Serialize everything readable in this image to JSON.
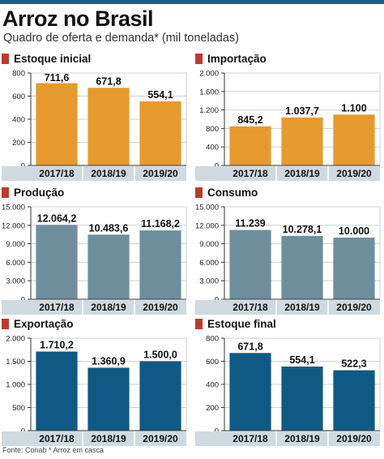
{
  "title": "Arroz no Brasil",
  "subtitle": "Quadro de oferta e demanda* (mil toneladas)",
  "source": "Fonte: Conab * Arroz em casca",
  "colors": {
    "orange": "#e69a2e",
    "gray": "#6f8e9b",
    "blue": "#0e5a84",
    "marker": "#c0392b",
    "axis_band": "#cfdae0",
    "grid": "#cdd3d6"
  },
  "chart_data": [
    {
      "type": "bar",
      "title": "Estoque inicial",
      "categories": [
        "2017/18",
        "2018/19",
        "2019/20"
      ],
      "values": [
        711.6,
        671.8,
        554.1
      ],
      "data_labels": [
        "711,6",
        "671,8",
        "554,1"
      ],
      "ylim": [
        0,
        800
      ],
      "yticks": [
        0,
        200,
        400,
        600,
        800
      ],
      "ytick_labels": [
        "0",
        "200",
        "400",
        "600",
        "800"
      ],
      "color": "orange",
      "grid": true
    },
    {
      "type": "bar",
      "title": "Importação",
      "categories": [
        "2017/18",
        "2018/19",
        "2019/20"
      ],
      "values": [
        845.2,
        1037.7,
        1100
      ],
      "data_labels": [
        "845,2",
        "1.037,7",
        "1.100"
      ],
      "ylim": [
        0,
        2000
      ],
      "yticks": [
        0,
        400,
        800,
        1200,
        1600,
        2000
      ],
      "ytick_labels": [
        "0",
        "400",
        "800",
        "1.200",
        "1.600",
        "2.000"
      ],
      "color": "orange",
      "grid": true
    },
    {
      "type": "bar",
      "title": "Produção",
      "categories": [
        "2017/18",
        "2018/19",
        "2019/20"
      ],
      "values": [
        12064.2,
        10483.6,
        11168.2
      ],
      "data_labels": [
        "12.064,2",
        "10.483,6",
        "11.168,2"
      ],
      "ylim": [
        0,
        15000
      ],
      "yticks": [
        0,
        3000,
        6000,
        9000,
        12000,
        15000
      ],
      "ytick_labels": [
        "0",
        "3.000",
        "6.000",
        "9.000",
        "12.000",
        "15.000"
      ],
      "color": "gray",
      "grid": true
    },
    {
      "type": "bar",
      "title": "Consumo",
      "categories": [
        "2017/18",
        "2018/19",
        "2019/20"
      ],
      "values": [
        11239,
        10278.1,
        10000
      ],
      "data_labels": [
        "11.239",
        "10.278,1",
        "10.000"
      ],
      "ylim": [
        0,
        15000
      ],
      "yticks": [
        0,
        3000,
        6000,
        9000,
        12000,
        15000
      ],
      "ytick_labels": [
        "0",
        "3.000",
        "6.000",
        "9.000",
        "12.000",
        "15.000"
      ],
      "color": "gray",
      "grid": true
    },
    {
      "type": "bar",
      "title": "Exportação",
      "categories": [
        "2017/18",
        "2018/19",
        "2019/20"
      ],
      "values": [
        1710.2,
        1360.9,
        1500
      ],
      "data_labels": [
        "1.710,2",
        "1.360,9",
        "1.500,0"
      ],
      "ylim": [
        0,
        2000
      ],
      "yticks": [
        0,
        500,
        1000,
        1500,
        2000
      ],
      "ytick_labels": [
        "0",
        "500",
        "1.000",
        "1.500",
        "2.000"
      ],
      "color": "blue",
      "grid": true
    },
    {
      "type": "bar",
      "title": "Estoque final",
      "categories": [
        "2017/18",
        "2018/19",
        "2019/20"
      ],
      "values": [
        671.8,
        554.1,
        522.3
      ],
      "data_labels": [
        "671,8",
        "554,1",
        "522,3"
      ],
      "ylim": [
        0,
        800
      ],
      "yticks": [
        0,
        200,
        400,
        600,
        800
      ],
      "ytick_labels": [
        "0",
        "200",
        "400",
        "600",
        "800"
      ],
      "color": "blue",
      "grid": true
    }
  ]
}
